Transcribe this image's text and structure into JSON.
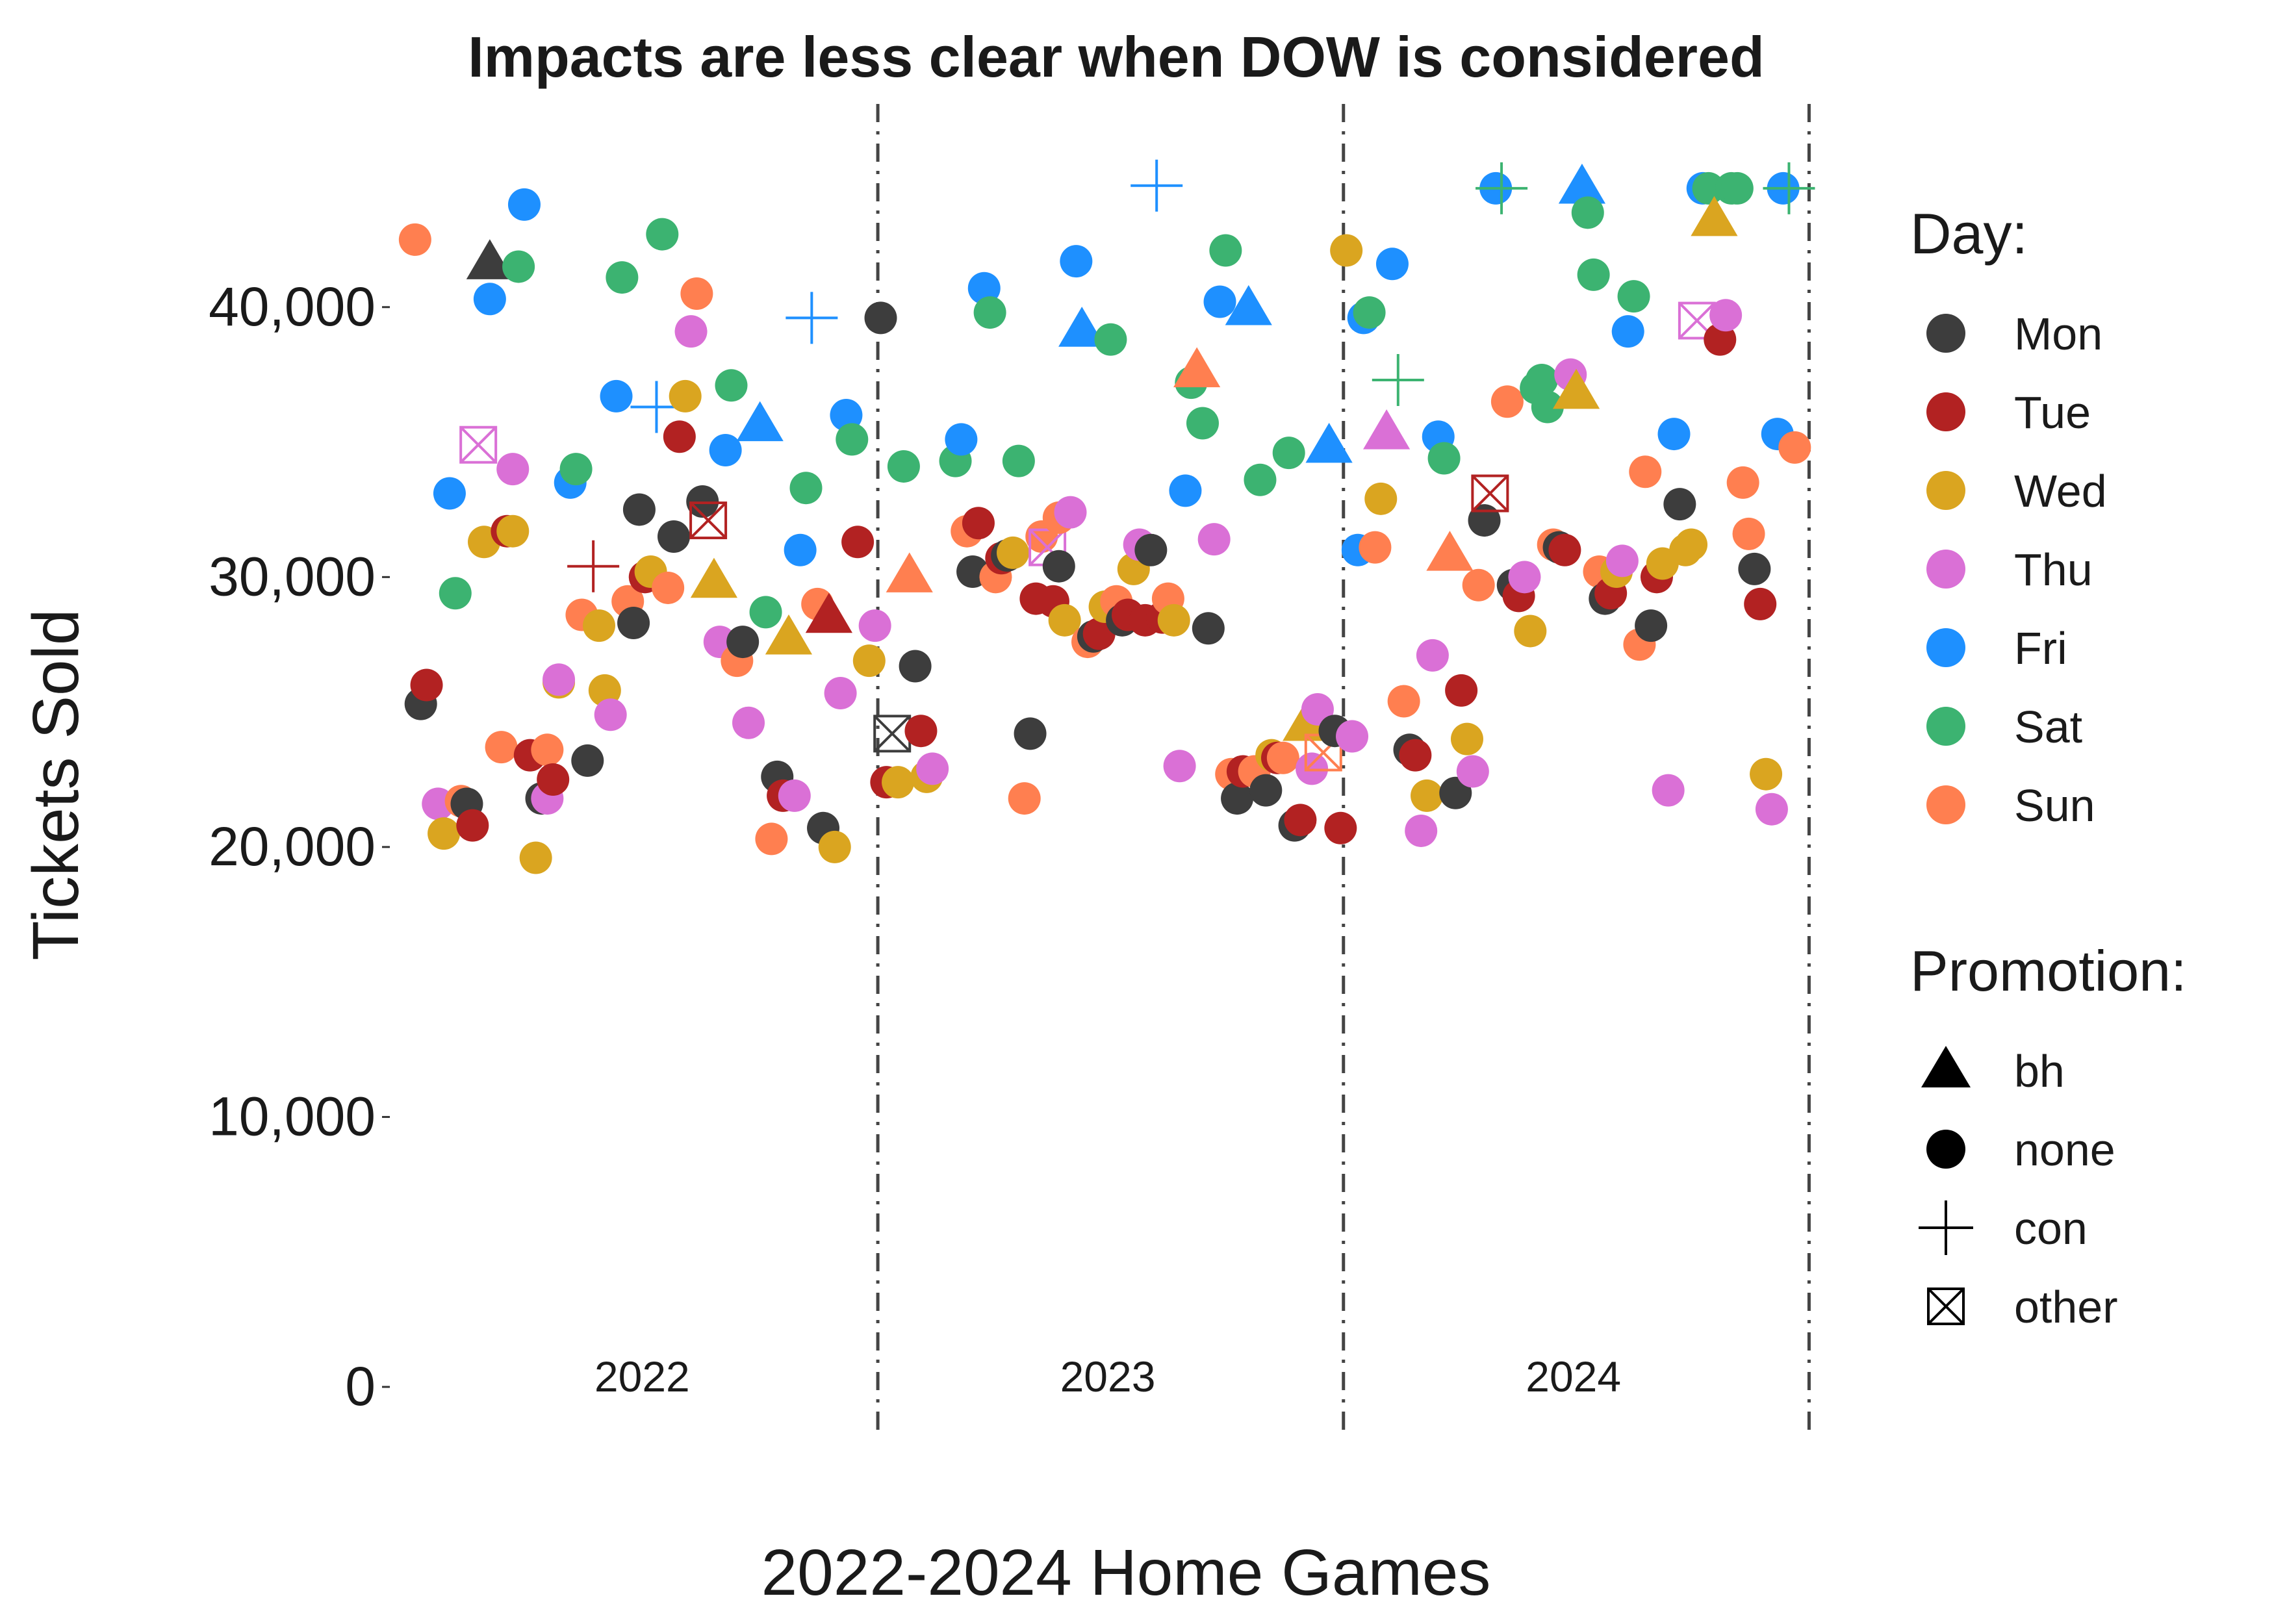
{
  "chart_data": {
    "type": "scatter",
    "title": "Impacts are less clear when DOW is considered",
    "xlabel": "2022-2024 Home Games",
    "ylabel": "Tickets Sold",
    "ylim": [
      0,
      45000
    ],
    "xlim": [
      0,
      243
    ],
    "y_ticks": [
      {
        "value": 0,
        "label": "0"
      },
      {
        "value": 10000,
        "label": "10,000"
      },
      {
        "value": 20000,
        "label": "20,000"
      },
      {
        "value": 30000,
        "label": "30,000"
      },
      {
        "value": 40000,
        "label": "40,000"
      }
    ],
    "season_labels": [
      {
        "text": "2022",
        "x": 40.5
      },
      {
        "text": "2023",
        "x": 121.5
      },
      {
        "text": "2024",
        "x": 202.5
      }
    ],
    "season_dividers": [
      81.5,
      162.5,
      243.5
    ],
    "grid": false,
    "legend_position": "right",
    "legend_day_title": "Day:",
    "legend_promo_title": "Promotion:",
    "days": [
      {
        "key": "Mon",
        "label": "Mon",
        "color": "#3d3d3d"
      },
      {
        "key": "Tue",
        "label": "Tue",
        "color": "#b22222"
      },
      {
        "key": "Wed",
        "label": "Wed",
        "color": "#daa520"
      },
      {
        "key": "Thu",
        "label": "Thu",
        "color": "#da70d6"
      },
      {
        "key": "Fri",
        "label": "Fri",
        "color": "#1e90ff"
      },
      {
        "key": "Sat",
        "label": "Sat",
        "color": "#3cb371"
      },
      {
        "key": "Sun",
        "label": "Sun",
        "color": "#ff7f50"
      }
    ],
    "promotions": [
      {
        "key": "bh",
        "label": "bh",
        "shape": "triangle"
      },
      {
        "key": "none",
        "label": "none",
        "shape": "circle"
      },
      {
        "key": "con",
        "label": "con",
        "shape": "plus"
      },
      {
        "key": "other",
        "label": "other",
        "shape": "boxx"
      }
    ],
    "points": [
      [
        1,
        42500,
        "Sun",
        "none"
      ],
      [
        2,
        25300,
        "Mon",
        "none"
      ],
      [
        3,
        26000,
        "Tue",
        "none"
      ],
      [
        5,
        21600,
        "Thu",
        "none"
      ],
      [
        6,
        20500,
        "Wed",
        "none"
      ],
      [
        7,
        33100,
        "Fri",
        "none"
      ],
      [
        8,
        29400,
        "Sat",
        "none"
      ],
      [
        9,
        21700,
        "Sun",
        "none"
      ],
      [
        10,
        21600,
        "Mon",
        "none"
      ],
      [
        11,
        20800,
        "Tue",
        "none"
      ],
      [
        12,
        34900,
        "Thu",
        "other"
      ],
      [
        13,
        31300,
        "Wed",
        "none"
      ],
      [
        14,
        40300,
        "Fri",
        "none"
      ],
      [
        14,
        41600,
        "Mon",
        "bh"
      ],
      [
        16,
        23700,
        "Sun",
        "none"
      ],
      [
        17,
        31700,
        "Tue",
        "none"
      ],
      [
        18,
        31700,
        "Wed",
        "none"
      ],
      [
        18,
        34000,
        "Thu",
        "none"
      ],
      [
        19,
        41500,
        "Sat",
        "none"
      ],
      [
        20,
        43800,
        "Fri",
        "none"
      ],
      [
        21,
        23400,
        "Tue",
        "none"
      ],
      [
        22,
        19600,
        "Wed",
        "none"
      ],
      [
        23,
        21800,
        "Mon",
        "none"
      ],
      [
        24,
        21800,
        "Thu",
        "none"
      ],
      [
        24,
        23600,
        "Sun",
        "none"
      ],
      [
        25,
        22500,
        "Tue",
        "none"
      ],
      [
        26,
        26100,
        "Wed",
        "none"
      ],
      [
        26,
        26200,
        "Thu",
        "none"
      ],
      [
        28,
        33500,
        "Fri",
        "none"
      ],
      [
        29,
        34000,
        "Sat",
        "none"
      ],
      [
        30,
        28600,
        "Sun",
        "none"
      ],
      [
        31,
        23200,
        "Mon",
        "none"
      ],
      [
        32,
        30400,
        "Tue",
        "con"
      ],
      [
        33,
        28200,
        "Wed",
        "none"
      ],
      [
        34,
        25800,
        "Wed",
        "none"
      ],
      [
        35,
        24900,
        "Thu",
        "none"
      ],
      [
        36,
        36700,
        "Fri",
        "none"
      ],
      [
        37,
        41100,
        "Sat",
        "none"
      ],
      [
        38,
        29100,
        "Sun",
        "none"
      ],
      [
        39,
        28300,
        "Mon",
        "none"
      ],
      [
        40,
        32500,
        "Mon",
        "none"
      ],
      [
        41,
        30000,
        "Tue",
        "none"
      ],
      [
        42,
        30200,
        "Wed",
        "none"
      ],
      [
        43,
        36300,
        "Fri",
        "con"
      ],
      [
        44,
        42700,
        "Sat",
        "none"
      ],
      [
        45,
        29600,
        "Sun",
        "none"
      ],
      [
        46,
        31500,
        "Mon",
        "none"
      ],
      [
        47,
        35200,
        "Tue",
        "none"
      ],
      [
        48,
        36700,
        "Wed",
        "none"
      ],
      [
        49,
        39100,
        "Thu",
        "none"
      ],
      [
        50,
        40500,
        "Sun",
        "none"
      ],
      [
        51,
        32800,
        "Mon",
        "none"
      ],
      [
        52,
        32100,
        "Tue",
        "other"
      ],
      [
        53,
        29800,
        "Wed",
        "bh"
      ],
      [
        54,
        27600,
        "Thu",
        "none"
      ],
      [
        55,
        34700,
        "Fri",
        "none"
      ],
      [
        56,
        37100,
        "Sat",
        "none"
      ],
      [
        57,
        26900,
        "Sun",
        "none"
      ],
      [
        58,
        27600,
        "Mon",
        "none"
      ],
      [
        59,
        24600,
        "Thu",
        "none"
      ],
      [
        61,
        35600,
        "Fri",
        "bh"
      ],
      [
        62,
        28700,
        "Sat",
        "none"
      ],
      [
        63,
        20300,
        "Sun",
        "none"
      ],
      [
        64,
        22600,
        "Mon",
        "none"
      ],
      [
        65,
        21900,
        "Tue",
        "none"
      ],
      [
        66,
        27700,
        "Wed",
        "bh"
      ],
      [
        67,
        21900,
        "Thu",
        "none"
      ],
      [
        68,
        31000,
        "Fri",
        "none"
      ],
      [
        69,
        33300,
        "Sat",
        "none"
      ],
      [
        70,
        39600,
        "Fri",
        "con"
      ],
      [
        71,
        29000,
        "Sun",
        "none"
      ],
      [
        72,
        20700,
        "Mon",
        "none"
      ],
      [
        73,
        28500,
        "Tue",
        "bh"
      ],
      [
        74,
        20000,
        "Wed",
        "none"
      ],
      [
        75,
        25700,
        "Thu",
        "none"
      ],
      [
        76,
        36000,
        "Fri",
        "none"
      ],
      [
        77,
        35100,
        "Sat",
        "none"
      ],
      [
        78,
        31300,
        "Tue",
        "none"
      ],
      [
        80,
        26900,
        "Wed",
        "none"
      ],
      [
        81,
        28200,
        "Thu",
        "none"
      ],
      [
        82,
        39600,
        "Mon",
        "none"
      ],
      [
        83,
        22400,
        "Tue",
        "none"
      ],
      [
        84,
        24200,
        "Mon",
        "other"
      ],
      [
        85,
        22400,
        "Wed",
        "none"
      ],
      [
        86,
        34100,
        "Sat",
        "none"
      ],
      [
        87,
        30000,
        "Sun",
        "bh"
      ],
      [
        88,
        26700,
        "Mon",
        "none"
      ],
      [
        89,
        24300,
        "Tue",
        "none"
      ],
      [
        90,
        22600,
        "Wed",
        "none"
      ],
      [
        91,
        22900,
        "Thu",
        "none"
      ],
      [
        95,
        34300,
        "Sat",
        "none"
      ],
      [
        96,
        35100,
        "Fri",
        "none"
      ],
      [
        97,
        31700,
        "Sun",
        "none"
      ],
      [
        98,
        30200,
        "Mon",
        "none"
      ],
      [
        99,
        32000,
        "Tue",
        "none"
      ],
      [
        100,
        40700,
        "Fri",
        "none"
      ],
      [
        101,
        39800,
        "Sat",
        "none"
      ],
      [
        102,
        30000,
        "Sun",
        "none"
      ],
      [
        103,
        30700,
        "Tue",
        "none"
      ],
      [
        104,
        30800,
        "Mon",
        "none"
      ],
      [
        105,
        30900,
        "Wed",
        "none"
      ],
      [
        106,
        34300,
        "Sat",
        "none"
      ],
      [
        107,
        21800,
        "Sun",
        "none"
      ],
      [
        108,
        24200,
        "Mon",
        "none"
      ],
      [
        109,
        29200,
        "Tue",
        "none"
      ],
      [
        110,
        31500,
        "Sun",
        "none"
      ],
      [
        111,
        31100,
        "Thu",
        "other"
      ],
      [
        112,
        29100,
        "Tue",
        "none"
      ],
      [
        113,
        32200,
        "Sun",
        "none"
      ],
      [
        113,
        30400,
        "Mon",
        "none"
      ],
      [
        114,
        28400,
        "Wed",
        "none"
      ],
      [
        115,
        32400,
        "Thu",
        "none"
      ],
      [
        116,
        41700,
        "Fri",
        "none"
      ],
      [
        117,
        39100,
        "Fri",
        "bh"
      ],
      [
        118,
        27600,
        "Sun",
        "none"
      ],
      [
        119,
        27800,
        "Mon",
        "none"
      ],
      [
        120,
        27900,
        "Tue",
        "none"
      ],
      [
        121,
        28900,
        "Wed",
        "none"
      ],
      [
        122,
        38800,
        "Sat",
        "none"
      ],
      [
        123,
        29100,
        "Sun",
        "none"
      ],
      [
        124,
        28400,
        "Mon",
        "none"
      ],
      [
        125,
        28600,
        "Tue",
        "none"
      ],
      [
        126,
        30300,
        "Wed",
        "none"
      ],
      [
        127,
        31200,
        "Thu",
        "none"
      ],
      [
        128,
        28400,
        "Tue",
        "none"
      ],
      [
        129,
        31000,
        "Mon",
        "none"
      ],
      [
        130,
        44500,
        "Fri",
        "con"
      ],
      [
        131,
        28500,
        "Tue",
        "none"
      ],
      [
        132,
        29200,
        "Sun",
        "none"
      ],
      [
        133,
        28400,
        "Wed",
        "none"
      ],
      [
        134,
        23000,
        "Thu",
        "none"
      ],
      [
        135,
        33200,
        "Fri",
        "none"
      ],
      [
        136,
        37200,
        "Sat",
        "none"
      ],
      [
        137,
        37600,
        "Sun",
        "bh"
      ],
      [
        138,
        35700,
        "Sat",
        "none"
      ],
      [
        139,
        28100,
        "Mon",
        "none"
      ],
      [
        140,
        31400,
        "Thu",
        "none"
      ],
      [
        141,
        40200,
        "Fri",
        "none"
      ],
      [
        142,
        42100,
        "Sat",
        "none"
      ],
      [
        143,
        22700,
        "Sun",
        "none"
      ],
      [
        144,
        21800,
        "Mon",
        "none"
      ],
      [
        145,
        22800,
        "Tue",
        "none"
      ],
      [
        146,
        39900,
        "Fri",
        "bh"
      ],
      [
        147,
        22800,
        "Sun",
        "none"
      ],
      [
        148,
        33600,
        "Sat",
        "none"
      ],
      [
        149,
        22100,
        "Mon",
        "none"
      ],
      [
        150,
        23400,
        "Wed",
        "none"
      ],
      [
        151,
        23300,
        "Tue",
        "none"
      ],
      [
        152,
        23300,
        "Sun",
        "none"
      ],
      [
        153,
        34600,
        "Sat",
        "none"
      ],
      [
        154,
        20800,
        "Mon",
        "none"
      ],
      [
        155,
        21000,
        "Tue",
        "none"
      ],
      [
        156,
        24500,
        "Wed",
        "bh"
      ],
      [
        157,
        22900,
        "Thu",
        "none"
      ],
      [
        158,
        25100,
        "Thu",
        "none"
      ],
      [
        159,
        23500,
        "Sun",
        "other"
      ],
      [
        160,
        34800,
        "Fri",
        "bh"
      ],
      [
        161,
        24300,
        "Mon",
        "none"
      ],
      [
        162,
        20700,
        "Tue",
        "none"
      ],
      [
        163,
        42100,
        "Wed",
        "none"
      ],
      [
        164,
        24100,
        "Thu",
        "none"
      ],
      [
        165,
        31000,
        "Fri",
        "none"
      ],
      [
        166,
        39600,
        "Fri",
        "none"
      ],
      [
        167,
        39800,
        "Sat",
        "none"
      ],
      [
        168,
        31100,
        "Sun",
        "none"
      ],
      [
        169,
        32900,
        "Wed",
        "none"
      ],
      [
        170,
        35300,
        "Thu",
        "bh"
      ],
      [
        171,
        41600,
        "Fri",
        "none"
      ],
      [
        172,
        37300,
        "Sat",
        "con"
      ],
      [
        173,
        25400,
        "Sun",
        "none"
      ],
      [
        174,
        23600,
        "Mon",
        "none"
      ],
      [
        175,
        23400,
        "Tue",
        "none"
      ],
      [
        176,
        20600,
        "Thu",
        "none"
      ],
      [
        177,
        21900,
        "Wed",
        "none"
      ],
      [
        178,
        27100,
        "Thu",
        "none"
      ],
      [
        179,
        35200,
        "Fri",
        "none"
      ],
      [
        180,
        34400,
        "Sat",
        "none"
      ],
      [
        181,
        30800,
        "Sun",
        "bh"
      ],
      [
        182,
        22000,
        "Mon",
        "none"
      ],
      [
        183,
        25800,
        "Tue",
        "none"
      ],
      [
        184,
        24000,
        "Wed",
        "none"
      ],
      [
        185,
        22800,
        "Thu",
        "none"
      ],
      [
        186,
        29700,
        "Sun",
        "none"
      ],
      [
        187,
        32100,
        "Mon",
        "none"
      ],
      [
        188,
        33100,
        "Tue",
        "other"
      ],
      [
        189,
        44400,
        "Fri",
        "none"
      ],
      [
        190,
        44400,
        "Sat",
        "con"
      ],
      [
        191,
        36500,
        "Sun",
        "none"
      ],
      [
        192,
        29700,
        "Mon",
        "none"
      ],
      [
        193,
        29300,
        "Tue",
        "none"
      ],
      [
        194,
        30000,
        "Thu",
        "none"
      ],
      [
        195,
        28000,
        "Wed",
        "none"
      ],
      [
        196,
        37000,
        "Sat",
        "none"
      ],
      [
        197,
        37300,
        "Sat",
        "none"
      ],
      [
        198,
        36300,
        "Sat",
        "none"
      ],
      [
        199,
        31200,
        "Sun",
        "none"
      ],
      [
        200,
        31100,
        "Mon",
        "none"
      ],
      [
        201,
        31000,
        "Tue",
        "none"
      ],
      [
        202,
        37500,
        "Thu",
        "none"
      ],
      [
        203,
        36800,
        "Wed",
        "bh"
      ],
      [
        204,
        44400,
        "Fri",
        "bh"
      ],
      [
        205,
        43500,
        "Sat",
        "none"
      ],
      [
        206,
        41200,
        "Sat",
        "none"
      ],
      [
        207,
        30200,
        "Sun",
        "none"
      ],
      [
        208,
        29200,
        "Mon",
        "none"
      ],
      [
        209,
        29400,
        "Tue",
        "none"
      ],
      [
        210,
        30200,
        "Wed",
        "none"
      ],
      [
        211,
        30600,
        "Thu",
        "none"
      ],
      [
        212,
        39100,
        "Fri",
        "none"
      ],
      [
        213,
        40400,
        "Sat",
        "none"
      ],
      [
        214,
        27500,
        "Sun",
        "none"
      ],
      [
        215,
        33900,
        "Sun",
        "none"
      ],
      [
        216,
        28200,
        "Mon",
        "none"
      ],
      [
        217,
        30000,
        "Tue",
        "none"
      ],
      [
        218,
        30500,
        "Wed",
        "none"
      ],
      [
        219,
        22100,
        "Thu",
        "none"
      ],
      [
        220,
        35300,
        "Fri",
        "none"
      ],
      [
        221,
        32700,
        "Mon",
        "none"
      ],
      [
        222,
        31000,
        "Wed",
        "none"
      ],
      [
        223,
        31200,
        "Wed",
        "none"
      ],
      [
        224,
        39500,
        "Thu",
        "other"
      ],
      [
        225,
        44400,
        "Fri",
        "none"
      ],
      [
        226,
        44400,
        "Sat",
        "none"
      ],
      [
        227,
        43200,
        "Wed",
        "bh"
      ],
      [
        228,
        38800,
        "Tue",
        "none"
      ],
      [
        229,
        39700,
        "Thu",
        "none"
      ],
      [
        230,
        44400,
        "Sat",
        "none"
      ],
      [
        231,
        44400,
        "Sat",
        "none"
      ],
      [
        232,
        33500,
        "Sun",
        "none"
      ],
      [
        233,
        31600,
        "Sun",
        "none"
      ],
      [
        234,
        30300,
        "Mon",
        "none"
      ],
      [
        235,
        29000,
        "Tue",
        "none"
      ],
      [
        236,
        22700,
        "Wed",
        "none"
      ],
      [
        237,
        21400,
        "Thu",
        "none"
      ],
      [
        238,
        35300,
        "Fri",
        "none"
      ],
      [
        239,
        44400,
        "Fri",
        "none"
      ],
      [
        240,
        44400,
        "Sat",
        "con"
      ],
      [
        241,
        34800,
        "Sun",
        "none"
      ]
    ]
  }
}
